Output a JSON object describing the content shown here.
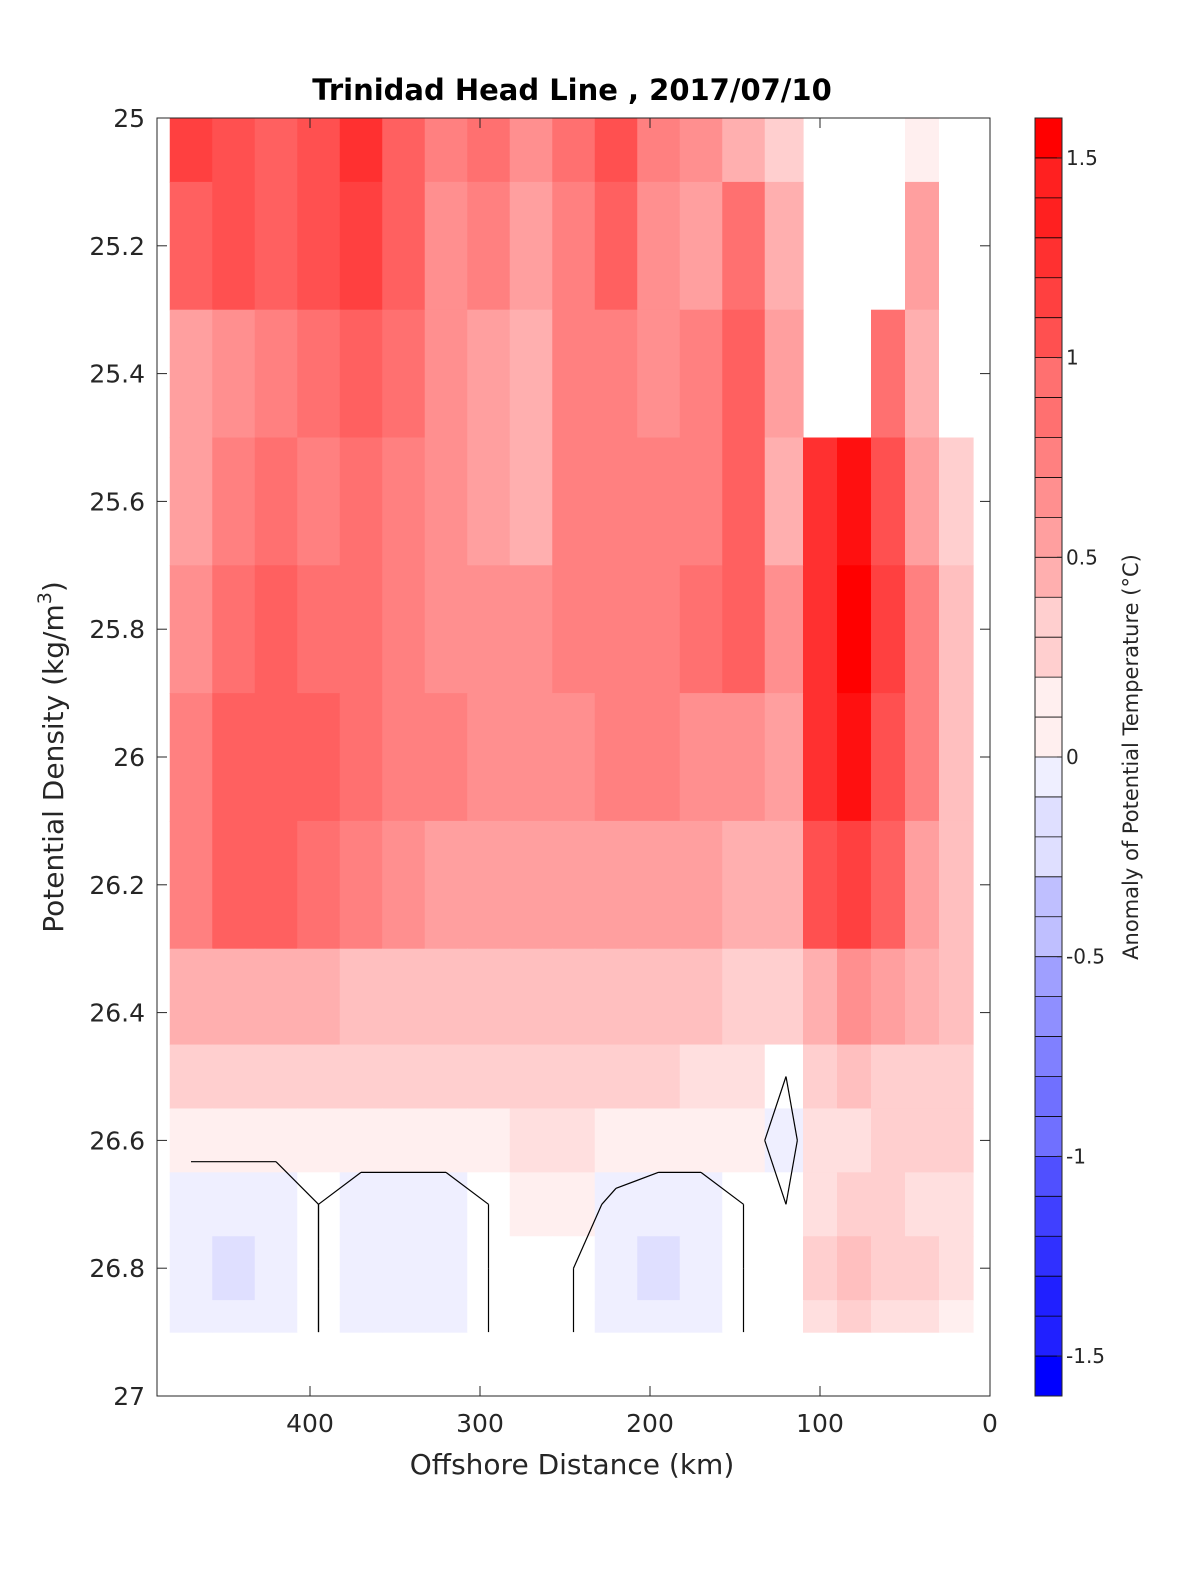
{
  "chart_data": {
    "type": "heatmap",
    "title": "Trinidad Head Line , 2017/07/10",
    "xlabel": "Offshore Distance (km)",
    "ylabel": "Potential Density (kg/m",
    "ylabel_superscript": "3",
    "ylabel_suffix": ")",
    "xlim": [
      490,
      0
    ],
    "ylim": [
      25,
      27
    ],
    "x_reversed": true,
    "y_reversed": true,
    "x_ticks": [
      400,
      300,
      200,
      100,
      0
    ],
    "y_ticks": [
      25,
      25.2,
      25.4,
      25.6,
      25.8,
      26,
      26.2,
      26.4,
      26.6,
      26.8,
      27
    ],
    "colorbar": {
      "label": "Anomaly of Potential Temperature (°C)",
      "range": [
        -1.6,
        1.6
      ],
      "step": 0.1,
      "ticks": [
        1.5,
        1,
        0.5,
        0,
        -0.5,
        -1,
        -1.5
      ],
      "positive_color": "#ff0000",
      "negative_color": "#0000ff",
      "neutral_color": "#ffffff"
    },
    "x": [
      470,
      445,
      420,
      395,
      370,
      345,
      320,
      295,
      270,
      245,
      220,
      195,
      170,
      145,
      120,
      100,
      80,
      60,
      40,
      20
    ],
    "y": [
      25,
      25.2,
      25.4,
      25.6,
      25.8,
      26,
      26.2,
      26.4,
      26.5,
      26.6,
      26.7,
      26.8,
      26.9
    ],
    "z": [
      [
        1.2,
        1.1,
        1.0,
        1.1,
        1.3,
        1.0,
        0.8,
        0.9,
        0.7,
        0.9,
        1.1,
        0.8,
        0.7,
        0.5,
        0.3,
        null,
        null,
        null,
        0.1,
        0.0
      ],
      [
        1.0,
        1.1,
        1.0,
        1.1,
        1.2,
        1.0,
        0.7,
        0.8,
        0.6,
        0.8,
        1.0,
        0.7,
        0.6,
        0.9,
        0.5,
        null,
        null,
        null,
        0.6,
        0.0
      ],
      [
        0.6,
        0.7,
        0.8,
        0.9,
        1.0,
        0.9,
        0.7,
        0.6,
        0.5,
        0.8,
        0.8,
        0.7,
        0.8,
        1.0,
        0.6,
        null,
        null,
        0.9,
        0.5,
        0.0
      ],
      [
        0.6,
        0.8,
        0.9,
        0.8,
        0.9,
        0.8,
        0.7,
        0.6,
        0.5,
        0.8,
        0.8,
        0.8,
        0.8,
        1.0,
        0.5,
        1.3,
        1.5,
        1.1,
        0.6,
        0.3
      ],
      [
        0.7,
        0.9,
        1.0,
        0.9,
        0.9,
        0.8,
        0.7,
        0.7,
        0.7,
        0.8,
        0.8,
        0.8,
        0.9,
        1.0,
        0.7,
        1.3,
        1.6,
        1.2,
        0.8,
        0.4
      ],
      [
        0.8,
        1.0,
        1.0,
        1.0,
        0.9,
        0.8,
        0.8,
        0.7,
        0.7,
        0.7,
        0.8,
        0.8,
        0.7,
        0.7,
        0.6,
        1.3,
        1.5,
        1.1,
        0.8,
        0.4
      ],
      [
        0.8,
        1.0,
        1.0,
        0.9,
        0.8,
        0.7,
        0.6,
        0.6,
        0.6,
        0.6,
        0.6,
        0.6,
        0.6,
        0.5,
        0.5,
        1.1,
        1.2,
        1.0,
        0.6,
        0.4
      ],
      [
        0.5,
        0.5,
        0.5,
        0.5,
        0.4,
        0.4,
        0.4,
        0.4,
        0.4,
        0.4,
        0.4,
        0.4,
        0.4,
        0.3,
        0.3,
        0.5,
        0.7,
        0.6,
        0.5,
        0.4
      ],
      [
        0.3,
        0.3,
        0.3,
        0.3,
        0.3,
        0.3,
        0.3,
        0.3,
        0.3,
        0.3,
        0.3,
        0.3,
        0.2,
        0.2,
        0.0,
        0.3,
        0.4,
        0.3,
        0.3,
        0.3
      ],
      [
        0.05,
        0.05,
        0.05,
        0.1,
        0.1,
        0.1,
        0.1,
        0.1,
        0.2,
        0.2,
        0.15,
        0.1,
        0.1,
        0.1,
        -0.1,
        0.2,
        0.2,
        0.3,
        0.3,
        0.3
      ],
      [
        -0.1,
        -0.1,
        -0.1,
        0.0,
        -0.1,
        -0.1,
        -0.1,
        0.0,
        0.1,
        0.1,
        -0.05,
        -0.1,
        -0.1,
        0.0,
        0.0,
        0.2,
        0.3,
        0.3,
        0.2,
        0.2
      ],
      [
        -0.1,
        -0.2,
        -0.1,
        0.0,
        -0.1,
        -0.1,
        -0.1,
        0.0,
        0.0,
        0.0,
        -0.1,
        -0.2,
        -0.1,
        0.0,
        0.0,
        0.3,
        0.4,
        0.3,
        0.3,
        0.2
      ],
      [
        -0.1,
        -0.1,
        -0.05,
        0.0,
        -0.1,
        -0.1,
        -0.1,
        0.0,
        0.0,
        0.0,
        -0.1,
        -0.1,
        -0.1,
        0.0,
        0.0,
        0.2,
        0.3,
        0.2,
        0.2,
        0.1
      ]
    ],
    "zero_contour_note": ""
  }
}
